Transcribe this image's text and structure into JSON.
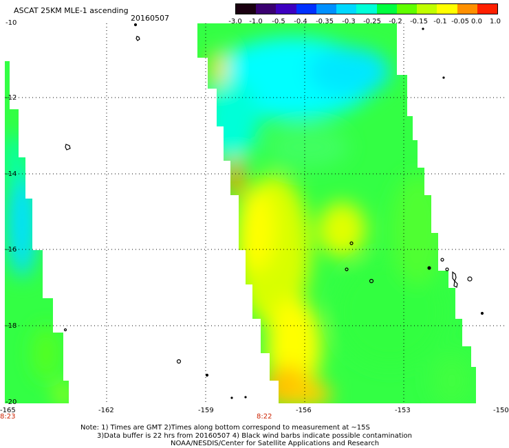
{
  "header": {
    "title": "ASCAT 25KM MLE-1 ascending",
    "date": "20160507"
  },
  "colorbar": {
    "labels": [
      "-3.0",
      "-1.0",
      "-0.5",
      "-0.4",
      "-0.35",
      "-0.3",
      "-0.25",
      "-0.2",
      "-0.15",
      "-0.1",
      "-0.05",
      "0.0",
      "1.0"
    ],
    "colors": [
      "#1a0010",
      "#3a0070",
      "#3d00c0",
      "#0030ff",
      "#0090ff",
      "#00d8ff",
      "#00ffd8",
      "#00ff40",
      "#60ff00",
      "#c0ff00",
      "#ffff00",
      "#ff9000",
      "#ff2000"
    ]
  },
  "map": {
    "y_ticks": [
      "-10",
      "-12",
      "-14",
      "-16",
      "-18",
      "-20"
    ],
    "x_ticks": [
      "-165",
      "-162",
      "-159",
      "-156",
      "-153",
      "-150"
    ],
    "swath_times": [
      "8:23",
      "8:22"
    ]
  },
  "notes": [
    "Note: 1) Times are GMT 2)Times along bottom correspond to measurement at ~15S",
    "3)Data buffer is 22 hrs from 20160507 4) Black wind barbs indicate possible contamination",
    "NOAA/NESDIS/Center for Satellite Applications and Research"
  ]
}
